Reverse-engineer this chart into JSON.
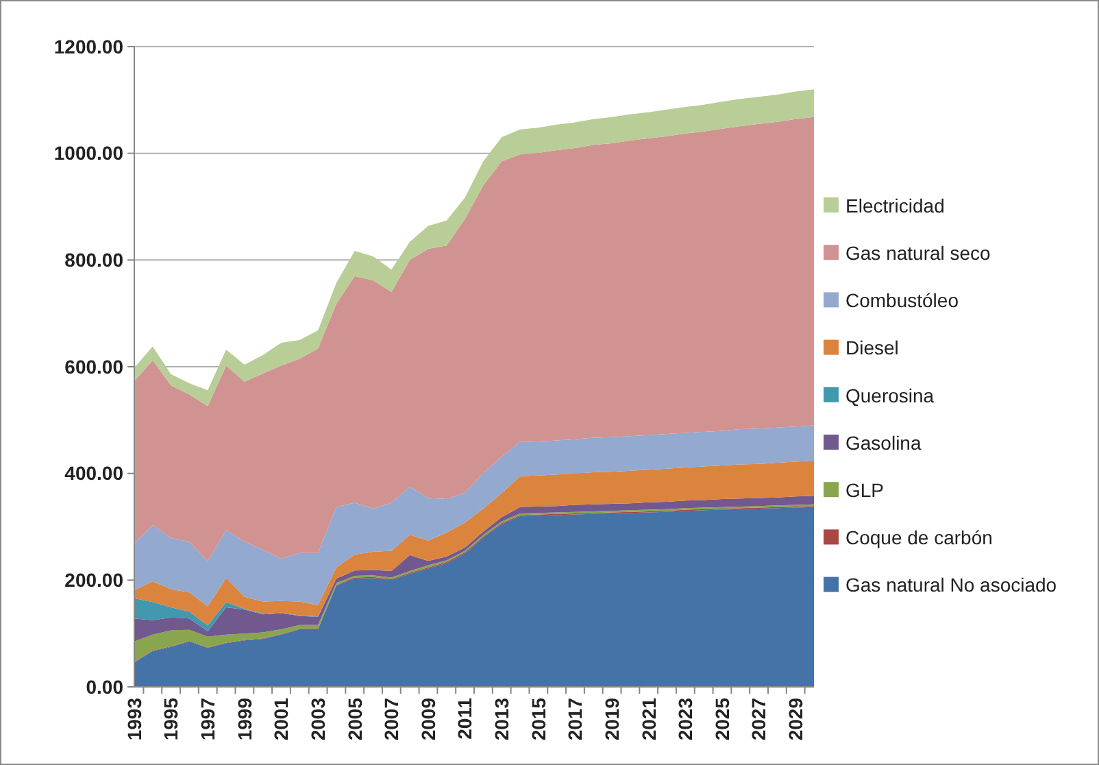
{
  "chart_data": {
    "type": "area",
    "stacked": true,
    "categories": [
      "1993",
      null,
      "1995",
      null,
      "1997",
      null,
      "1999",
      null,
      "2001",
      null,
      "2003",
      null,
      "2005",
      null,
      "2007",
      null,
      "2009",
      null,
      "2011",
      null,
      "2013",
      null,
      "2015",
      null,
      "2017",
      null,
      "2019",
      null,
      "2021",
      null,
      "2023",
      null,
      "2025",
      null,
      "2027",
      null,
      "2029",
      null
    ],
    "ylim": [
      0,
      1200
    ],
    "yticks": [
      {
        "value": 0,
        "label": "0.00"
      },
      {
        "value": 200,
        "label": "200.00"
      },
      {
        "value": 400,
        "label": "400.00"
      },
      {
        "value": 600,
        "label": "600.00"
      },
      {
        "value": 800,
        "label": "800.00"
      },
      {
        "value": 1000,
        "label": "1000.00"
      },
      {
        "value": 1200,
        "label": "1200.00"
      }
    ],
    "grid": "y",
    "legend": "right",
    "series": [
      {
        "name": "Gas natural No asociado",
        "color": "#4572a7",
        "values": [
          46,
          67,
          75,
          85,
          73,
          82,
          87,
          90,
          98,
          108,
          108,
          190,
          203,
          204,
          200,
          212,
          222,
          232,
          250,
          280,
          305,
          320,
          321,
          322,
          323,
          324,
          325,
          326,
          327,
          328,
          330,
          331,
          332,
          333,
          334,
          335,
          336,
          337
        ]
      },
      {
        "name": "Coque de carbón",
        "color": "#aa4643",
        "values": [
          1,
          1,
          1,
          1,
          1,
          1,
          1,
          1,
          1,
          1,
          1,
          1,
          2,
          2,
          2,
          2,
          2,
          2,
          2,
          2,
          2,
          2,
          2,
          2,
          2,
          2,
          2,
          2,
          2,
          2,
          2,
          2,
          2,
          2,
          2,
          2,
          2,
          2
        ]
      },
      {
        "name": "GLP",
        "color": "#89a54e",
        "values": [
          38,
          30,
          30,
          21,
          20,
          15,
          12,
          11,
          9,
          7,
          7,
          4,
          3,
          3,
          3,
          3,
          4,
          3,
          3,
          3,
          3,
          3,
          3,
          3,
          3,
          3,
          3,
          3,
          3,
          3,
          3,
          3,
          3,
          3,
          3,
          3,
          3,
          3
        ]
      },
      {
        "name": "Gasolina",
        "color": "#71588f",
        "values": [
          43,
          27,
          24,
          21,
          10,
          51,
          45,
          34,
          30,
          17,
          15,
          8,
          10,
          10,
          12,
          30,
          8,
          7,
          6,
          6,
          8,
          12,
          12,
          12,
          13,
          13,
          13,
          13,
          14,
          14,
          14,
          14,
          15,
          15,
          15,
          15,
          16,
          16
        ]
      },
      {
        "name": "Querosina",
        "color": "#4198af",
        "values": [
          38,
          34,
          19,
          13,
          11,
          10,
          1,
          1,
          1,
          1,
          1,
          0,
          0,
          0,
          0,
          0,
          0,
          0,
          0,
          0,
          0,
          0,
          0,
          0,
          0,
          0,
          0,
          0,
          0,
          0,
          0,
          0,
          0,
          0,
          0,
          0,
          0,
          0
        ]
      },
      {
        "name": "Diesel",
        "color": "#db843d",
        "values": [
          15,
          39,
          34,
          36,
          36,
          45,
          23,
          23,
          22,
          26,
          21,
          21,
          30,
          34,
          38,
          38,
          38,
          45,
          47,
          43,
          45,
          58,
          58,
          59,
          59,
          60,
          60,
          61,
          61,
          62,
          62,
          63,
          63,
          64,
          64,
          65,
          65,
          66
        ]
      },
      {
        "name": "Combustóleo",
        "color": "#93a9cf",
        "values": [
          88,
          105,
          96,
          95,
          84,
          90,
          103,
          97,
          79,
          91,
          98,
          113,
          97,
          81,
          90,
          90,
          80,
          63,
          56,
          67,
          68,
          64,
          64,
          64,
          64,
          65,
          65,
          65,
          65,
          65,
          65,
          65,
          65,
          66,
          66,
          66,
          66,
          66
        ]
      },
      {
        "name": "Gas natural seco",
        "color": "#d19392",
        "values": [
          304,
          309,
          286,
          276,
          291,
          308,
          300,
          330,
          362,
          364,
          383,
          381,
          425,
          428,
          395,
          425,
          467,
          475,
          513,
          539,
          554,
          539,
          541,
          544,
          546,
          549,
          551,
          554,
          556,
          558,
          561,
          563,
          566,
          568,
          571,
          573,
          576,
          578
        ]
      },
      {
        "name": "Electricidad",
        "color": "#b9cd96",
        "values": [
          25,
          26,
          21,
          21,
          30,
          30,
          32,
          35,
          43,
          35,
          34,
          39,
          47,
          45,
          42,
          34,
          43,
          47,
          40,
          45,
          45,
          47,
          47,
          48,
          48,
          48,
          49,
          49,
          49,
          50,
          50,
          50,
          51,
          51,
          51,
          51,
          52,
          52
        ]
      }
    ]
  }
}
